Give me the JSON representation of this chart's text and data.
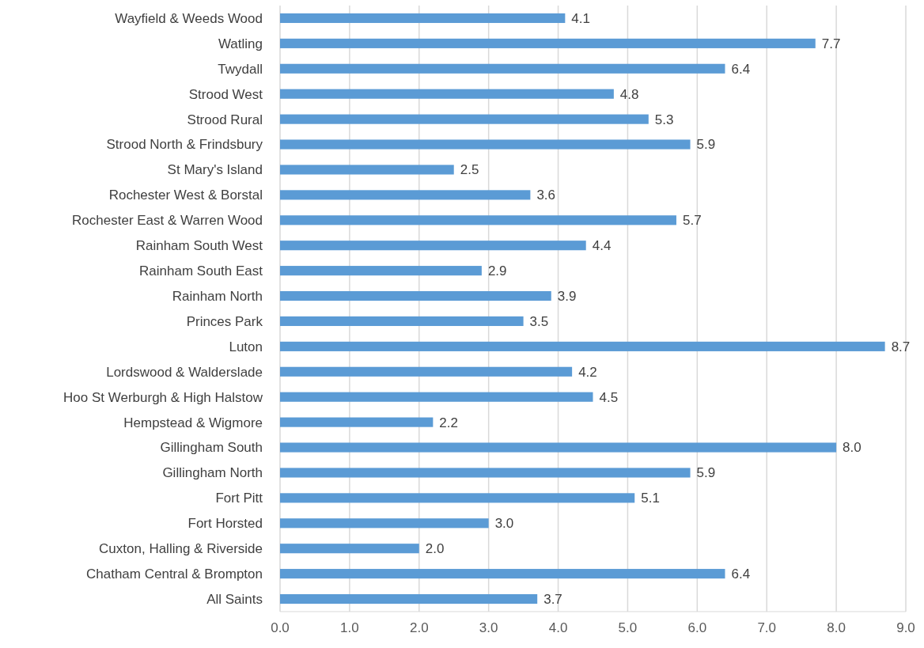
{
  "chart_data": {
    "type": "bar",
    "orientation": "horizontal",
    "categories": [
      "Wayfield & Weeds Wood",
      "Watling",
      "Twydall",
      "Strood West",
      "Strood Rural",
      "Strood North & Frindsbury",
      "St Mary's Island",
      "Rochester West & Borstal",
      "Rochester East & Warren Wood",
      "Rainham South West",
      "Rainham South East",
      "Rainham North",
      "Princes Park",
      "Luton",
      "Lordswood & Walderslade",
      "Hoo St Werburgh & High Halstow",
      "Hempstead & Wigmore",
      "Gillingham South",
      "Gillingham North",
      "Fort Pitt",
      "Fort Horsted",
      "Cuxton, Halling & Riverside",
      "Chatham Central & Brompton",
      "All Saints"
    ],
    "values": [
      4.1,
      7.7,
      6.4,
      4.8,
      5.3,
      5.9,
      2.5,
      3.6,
      5.7,
      4.4,
      2.9,
      3.9,
      3.5,
      8.7,
      4.2,
      4.5,
      2.2,
      8.0,
      5.9,
      5.1,
      3.0,
      2.0,
      6.4,
      3.7
    ],
    "value_labels": [
      "4.1",
      "7.7",
      "6.4",
      "4.8",
      "5.3",
      "5.9",
      "2.5",
      "3.6",
      "5.7",
      "4.4",
      "2.9",
      "3.9",
      "3.5",
      "8.7",
      "4.2",
      "4.5",
      "2.2",
      "8.0",
      "5.9",
      "5.1",
      "3.0",
      "2.0",
      "6.4",
      "3.7"
    ],
    "color": "#5b9bd5",
    "xlim": [
      0,
      9
    ],
    "xticks": [
      {
        "value": 0,
        "label": "0.0"
      },
      {
        "value": 1,
        "label": "1.0"
      },
      {
        "value": 2,
        "label": "2.0"
      },
      {
        "value": 3,
        "label": "3.0"
      },
      {
        "value": 4,
        "label": "4.0"
      },
      {
        "value": 5,
        "label": "5.0"
      },
      {
        "value": 6,
        "label": "6.0"
      },
      {
        "value": 7,
        "label": "7.0"
      },
      {
        "value": 8,
        "label": "8.0"
      },
      {
        "value": 9,
        "label": "9.0"
      }
    ],
    "grid": "x"
  }
}
